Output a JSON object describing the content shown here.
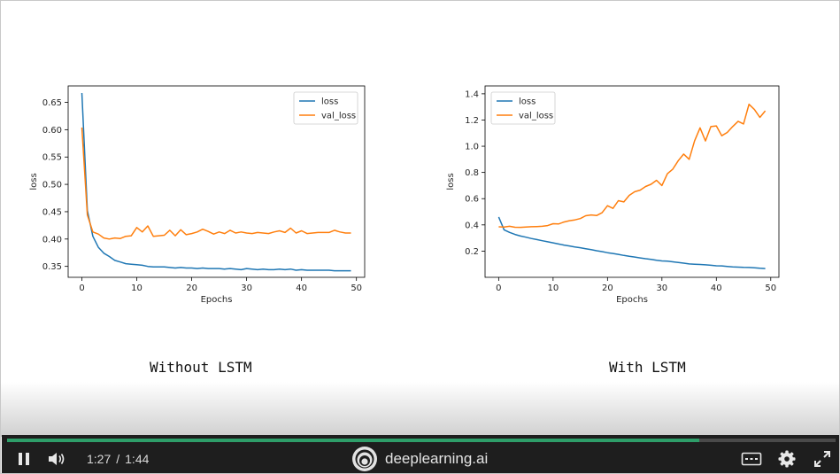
{
  "slide": {
    "caption_left": "Without LSTM",
    "caption_right": "With LSTM"
  },
  "chart_data": [
    {
      "type": "line",
      "xlabel": "Epochs",
      "ylabel": "loss",
      "xlim": [
        -2.5,
        51.5
      ],
      "ylim": [
        0.33,
        0.68
      ],
      "xticks": [
        0,
        10,
        20,
        30,
        40,
        50
      ],
      "yticks": [
        0.35,
        0.4,
        0.45,
        0.5,
        0.55,
        0.6,
        0.65
      ],
      "ytick_labels": [
        "0.35",
        "0.40",
        "0.45",
        "0.50",
        "0.55",
        "0.60",
        "0.65"
      ],
      "legend": "top-right",
      "x": [
        0,
        1,
        2,
        3,
        4,
        5,
        6,
        7,
        8,
        9,
        10,
        11,
        12,
        13,
        14,
        15,
        16,
        17,
        18,
        19,
        20,
        21,
        22,
        23,
        24,
        25,
        26,
        27,
        28,
        29,
        30,
        31,
        32,
        33,
        34,
        35,
        36,
        37,
        38,
        39,
        40,
        41,
        42,
        43,
        44,
        45,
        46,
        47,
        48,
        49
      ],
      "series": [
        {
          "name": "loss",
          "color": "#1f77b4",
          "values": [
            0.667,
            0.452,
            0.405,
            0.385,
            0.374,
            0.368,
            0.361,
            0.358,
            0.355,
            0.354,
            0.353,
            0.352,
            0.35,
            0.349,
            0.349,
            0.349,
            0.348,
            0.347,
            0.348,
            0.347,
            0.347,
            0.346,
            0.347,
            0.346,
            0.346,
            0.346,
            0.345,
            0.346,
            0.345,
            0.344,
            0.346,
            0.345,
            0.344,
            0.345,
            0.344,
            0.344,
            0.345,
            0.344,
            0.345,
            0.343,
            0.344,
            0.343,
            0.343,
            0.343,
            0.343,
            0.343,
            0.342,
            0.342,
            0.342,
            0.342
          ]
        },
        {
          "name": "val_loss",
          "color": "#ff7f0e",
          "values": [
            0.604,
            0.444,
            0.413,
            0.409,
            0.402,
            0.4,
            0.402,
            0.401,
            0.405,
            0.406,
            0.421,
            0.413,
            0.424,
            0.405,
            0.406,
            0.407,
            0.416,
            0.406,
            0.417,
            0.408,
            0.41,
            0.413,
            0.418,
            0.414,
            0.409,
            0.413,
            0.41,
            0.416,
            0.411,
            0.413,
            0.411,
            0.41,
            0.412,
            0.411,
            0.41,
            0.413,
            0.415,
            0.412,
            0.42,
            0.411,
            0.415,
            0.41,
            0.411,
            0.412,
            0.412,
            0.412,
            0.416,
            0.413,
            0.411,
            0.411
          ]
        }
      ]
    },
    {
      "type": "line",
      "xlabel": "Epochs",
      "ylabel": "loss",
      "xlim": [
        -2.5,
        51.5
      ],
      "ylim": [
        0.0,
        1.46
      ],
      "xticks": [
        0,
        10,
        20,
        30,
        40,
        50
      ],
      "yticks": [
        0.2,
        0.4,
        0.6,
        0.8,
        1.0,
        1.2,
        1.4
      ],
      "ytick_labels": [
        "0.2",
        "0.4",
        "0.6",
        "0.8",
        "1.0",
        "1.2",
        "1.4"
      ],
      "legend": "top-left",
      "x": [
        0,
        1,
        2,
        3,
        4,
        5,
        6,
        7,
        8,
        9,
        10,
        11,
        12,
        13,
        14,
        15,
        16,
        17,
        18,
        19,
        20,
        21,
        22,
        23,
        24,
        25,
        26,
        27,
        28,
        29,
        30,
        31,
        32,
        33,
        34,
        35,
        36,
        37,
        38,
        39,
        40,
        41,
        42,
        43,
        44,
        45,
        46,
        47,
        48,
        49
      ],
      "series": [
        {
          "name": "loss",
          "color": "#1f77b4",
          "values": [
            0.46,
            0.362,
            0.343,
            0.327,
            0.315,
            0.306,
            0.296,
            0.288,
            0.279,
            0.271,
            0.263,
            0.254,
            0.246,
            0.239,
            0.232,
            0.226,
            0.218,
            0.211,
            0.203,
            0.196,
            0.188,
            0.182,
            0.175,
            0.167,
            0.16,
            0.155,
            0.148,
            0.142,
            0.137,
            0.13,
            0.125,
            0.123,
            0.118,
            0.113,
            0.108,
            0.102,
            0.1,
            0.098,
            0.095,
            0.092,
            0.088,
            0.087,
            0.083,
            0.08,
            0.078,
            0.076,
            0.075,
            0.073,
            0.069,
            0.067
          ]
        },
        {
          "name": "val_loss",
          "color": "#ff7f0e",
          "values": [
            0.385,
            0.384,
            0.389,
            0.382,
            0.381,
            0.384,
            0.386,
            0.387,
            0.389,
            0.395,
            0.409,
            0.407,
            0.422,
            0.432,
            0.438,
            0.448,
            0.47,
            0.476,
            0.471,
            0.493,
            0.546,
            0.526,
            0.585,
            0.575,
            0.625,
            0.653,
            0.665,
            0.693,
            0.71,
            0.74,
            0.7,
            0.79,
            0.825,
            0.89,
            0.94,
            0.9,
            1.04,
            1.14,
            1.04,
            1.15,
            1.155,
            1.08,
            1.105,
            1.15,
            1.19,
            1.17,
            1.32,
            1.28,
            1.22,
            1.27
          ]
        }
      ]
    }
  ],
  "player": {
    "current_time": "1:27",
    "separator": "/",
    "duration": "1:44",
    "progress": 0.836,
    "brand": "deeplearning.ai",
    "accent_color": "#2e9e69",
    "icons": [
      "pause-icon",
      "volume-icon",
      "deeplearning-logo-icon",
      "captions-icon",
      "gear-icon",
      "fullscreen-icon"
    ]
  }
}
